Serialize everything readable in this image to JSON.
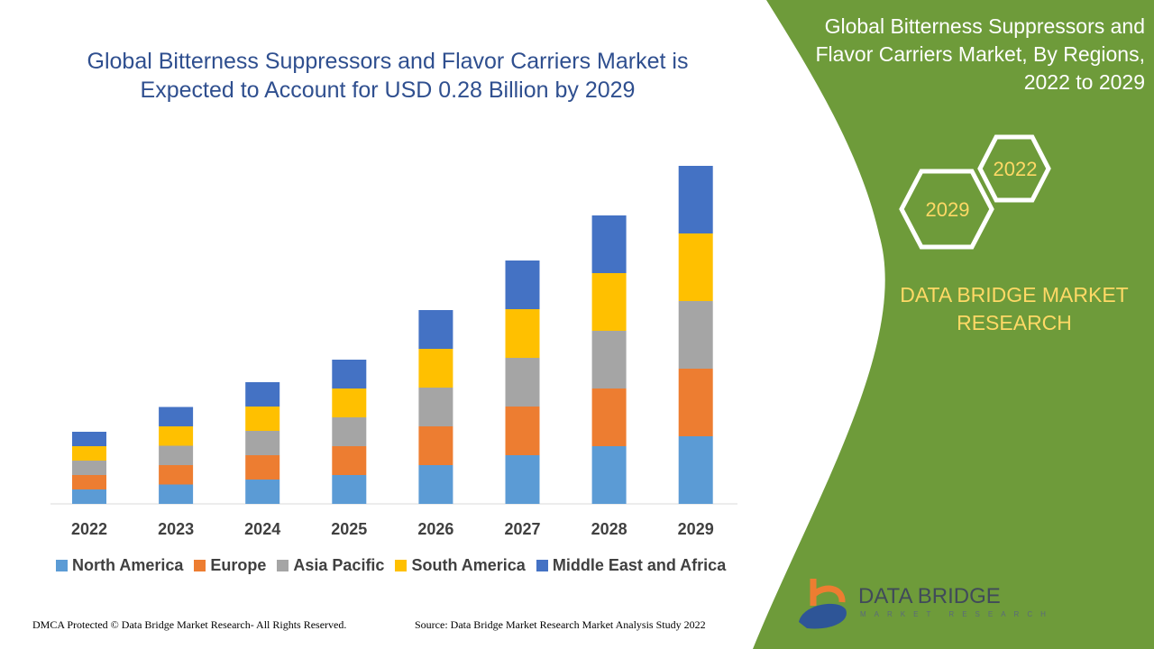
{
  "title": "Global Bitterness Suppressors and Flavor Carriers Market is Expected to Account for USD 0.28 Billion by 2029",
  "side_panel": {
    "title": "Global Bitterness Suppressors and Flavor Carriers Market, By Regions, 2022 to 2029",
    "hex_labels": [
      "2022",
      "2029"
    ],
    "brand": "DATA BRIDGE MARKET RESEARCH",
    "color": "#6E9B3A"
  },
  "logo": {
    "name": "DATA BRIDGE",
    "tagline": "MARKET RESEARCH"
  },
  "footer": {
    "left": "DMCA Protected © Data Bridge Market Research- All Rights Reserved.",
    "right": "Source: Data Bridge Market Research Market Analysis Study 2022"
  },
  "chart_data": {
    "type": "bar",
    "stacked": true,
    "categories": [
      "2022",
      "2023",
      "2024",
      "2025",
      "2026",
      "2027",
      "2028",
      "2029"
    ],
    "series": [
      {
        "name": "North America",
        "color": "#5B9BD5",
        "values": [
          1.6,
          2.15,
          2.7,
          3.2,
          4.3,
          5.4,
          6.4,
          7.5
        ]
      },
      {
        "name": "Europe",
        "color": "#ED7D31",
        "values": [
          1.6,
          2.15,
          2.7,
          3.2,
          4.3,
          5.4,
          6.4,
          7.5
        ]
      },
      {
        "name": "Asia Pacific",
        "color": "#A5A5A5",
        "values": [
          1.6,
          2.15,
          2.7,
          3.2,
          4.3,
          5.4,
          6.4,
          7.5
        ]
      },
      {
        "name": "South America",
        "color": "#FFC000",
        "values": [
          1.6,
          2.15,
          2.7,
          3.2,
          4.3,
          5.4,
          6.4,
          7.5
        ]
      },
      {
        "name": "Middle East and Africa",
        "color": "#4472C4",
        "values": [
          1.6,
          2.15,
          2.7,
          3.2,
          4.3,
          5.4,
          6.4,
          7.5
        ]
      }
    ],
    "legend_position": "bottom",
    "grid": false,
    "y_axis_shown": false
  }
}
